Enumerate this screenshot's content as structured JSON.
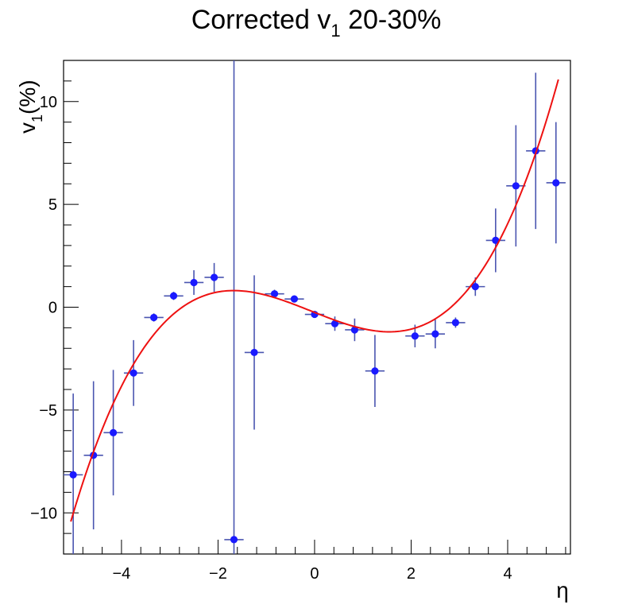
{
  "chart_data": {
    "type": "scatter",
    "title": {
      "main": "Corrected v",
      "sub": "1",
      "rest": " 20-30%"
    },
    "xlabel": "η",
    "ylabel": {
      "main": "v",
      "sub": "1",
      "rest": "(%)"
    },
    "xlim": [
      -5.2,
      5.3
    ],
    "ylim": [
      -12,
      12
    ],
    "xticks": [
      -4,
      -2,
      0,
      2,
      4
    ],
    "xtick_labels": [
      "−4",
      "−2",
      "0",
      "2",
      "4"
    ],
    "yticks": [
      -10,
      -5,
      0,
      5,
      10
    ],
    "ytick_labels": [
      "−10",
      "−5",
      "0",
      "5",
      "10"
    ],
    "grid": false,
    "series": [
      {
        "color": "#1a1aff",
        "error_color": "#4a55b0",
        "points": [
          {
            "x": -5.0,
            "y": -8.15,
            "xerr": 0.2,
            "yerr_low": 3.95,
            "yerr_high": 3.95
          },
          {
            "x": -4.58,
            "y": -7.2,
            "xerr": 0.2,
            "yerr_low": 3.6,
            "yerr_high": 3.6
          },
          {
            "x": -4.17,
            "y": -6.1,
            "xerr": 0.2,
            "yerr_low": 3.05,
            "yerr_high": 3.05
          },
          {
            "x": -3.75,
            "y": -3.2,
            "xerr": 0.2,
            "yerr_low": 1.6,
            "yerr_high": 1.6
          },
          {
            "x": -3.33,
            "y": -0.5,
            "xerr": 0.2,
            "yerr_low": 0.2,
            "yerr_high": 0.2
          },
          {
            "x": -2.92,
            "y": 0.55,
            "xerr": 0.2,
            "yerr_low": 0.2,
            "yerr_high": 0.2
          },
          {
            "x": -2.5,
            "y": 1.2,
            "xerr": 0.2,
            "yerr_low": 0.6,
            "yerr_high": 0.6
          },
          {
            "x": -2.08,
            "y": 1.45,
            "xerr": 0.2,
            "yerr_low": 0.7,
            "yerr_high": 0.7
          },
          {
            "x": -1.67,
            "y": -11.3,
            "xerr": 0.2,
            "yerr_low": 0.7,
            "yerr_high": 23.3
          },
          {
            "x": -1.25,
            "y": -2.2,
            "xerr": 0.2,
            "yerr_low": 3.75,
            "yerr_high": 3.75
          },
          {
            "x": -0.83,
            "y": 0.65,
            "xerr": 0.2,
            "yerr_low": 0.2,
            "yerr_high": 0.2
          },
          {
            "x": -0.42,
            "y": 0.4,
            "xerr": 0.2,
            "yerr_low": 0.15,
            "yerr_high": 0.15
          },
          {
            "x": 0.0,
            "y": -0.35,
            "xerr": 0.2,
            "yerr_low": 0.15,
            "yerr_high": 0.15
          },
          {
            "x": 0.42,
            "y": -0.8,
            "xerr": 0.2,
            "yerr_low": 0.35,
            "yerr_high": 0.35
          },
          {
            "x": 0.83,
            "y": -1.1,
            "xerr": 0.2,
            "yerr_low": 0.55,
            "yerr_high": 0.55
          },
          {
            "x": 1.25,
            "y": -3.1,
            "xerr": 0.2,
            "yerr_low": 1.75,
            "yerr_high": 1.75
          },
          {
            "x": 2.08,
            "y": -1.4,
            "xerr": 0.2,
            "yerr_low": 0.55,
            "yerr_high": 0.55
          },
          {
            "x": 2.5,
            "y": -1.3,
            "xerr": 0.2,
            "yerr_low": 0.7,
            "yerr_high": 0.7
          },
          {
            "x": 2.92,
            "y": -0.75,
            "xerr": 0.2,
            "yerr_low": 0.25,
            "yerr_high": 0.25
          },
          {
            "x": 3.33,
            "y": 1.0,
            "xerr": 0.2,
            "yerr_low": 0.45,
            "yerr_high": 0.45
          },
          {
            "x": 3.75,
            "y": 3.25,
            "xerr": 0.2,
            "yerr_low": 1.55,
            "yerr_high": 1.55
          },
          {
            "x": 4.17,
            "y": 5.9,
            "xerr": 0.2,
            "yerr_low": 2.95,
            "yerr_high": 2.95
          },
          {
            "x": 4.58,
            "y": 7.6,
            "xerr": 0.2,
            "yerr_low": 3.8,
            "yerr_high": 3.8
          },
          {
            "x": 5.0,
            "y": 6.05,
            "xerr": 0.2,
            "yerr_low": 2.95,
            "yerr_high": 2.95
          }
        ]
      }
    ],
    "fit": {
      "color": "#ee1111",
      "x_range": [
        -5.05,
        5.05
      ],
      "coefficients": [
        -0.253,
        -0.932,
        0.0227,
        0.12
      ]
    }
  }
}
